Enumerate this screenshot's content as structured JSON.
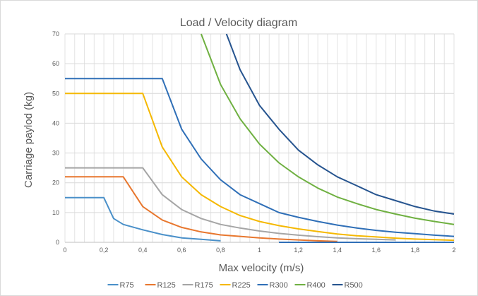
{
  "chart_data": {
    "type": "line",
    "title": "Load / Velocity diagram",
    "xlabel": "Max velocity (m/s)",
    "ylabel": "Carriage paylod (kg)",
    "xlim": [
      0,
      2
    ],
    "ylim": [
      0,
      70
    ],
    "x_ticks": [
      "0",
      "0,2",
      "0,4",
      "0,6",
      "0,8",
      "1",
      "1,2",
      "1,4",
      "1,6",
      "1,8",
      "2"
    ],
    "y_ticks": [
      "0",
      "10",
      "20",
      "30",
      "40",
      "50",
      "60",
      "70"
    ],
    "x_tick_values": [
      0,
      0.2,
      0.4,
      0.6,
      0.8,
      1.0,
      1.2,
      1.4,
      1.6,
      1.8,
      2.0
    ],
    "y_tick_values": [
      0,
      10,
      20,
      30,
      40,
      50,
      60,
      70
    ],
    "grid": true,
    "legend_position": "bottom",
    "series": [
      {
        "name": "R75",
        "color": "#4a90c9",
        "x": [
          0,
          0.2,
          0.25,
          0.3,
          0.4,
          0.5,
          0.6,
          0.7,
          0.8
        ],
        "y": [
          15,
          15,
          8,
          6,
          4.2,
          2.6,
          1.5,
          1.0,
          0.5
        ]
      },
      {
        "name": "R125",
        "color": "#e8772e",
        "x": [
          0,
          0.3,
          0.4,
          0.5,
          0.6,
          0.7,
          0.8,
          0.9,
          1.0,
          1.1,
          1.2,
          1.3,
          1.4
        ],
        "y": [
          22,
          22,
          12,
          7.5,
          5,
          3.5,
          2.5,
          2,
          1.5,
          1.1,
          0.8,
          0.5,
          0.3
        ]
      },
      {
        "name": "R175",
        "color": "#a5a5a5",
        "x": [
          0,
          0.4,
          0.5,
          0.6,
          0.7,
          0.8,
          0.9,
          1.0,
          1.1,
          1.2,
          1.3,
          1.4,
          1.5,
          1.6,
          1.7
        ],
        "y": [
          25,
          25,
          16,
          11,
          8,
          6,
          4.8,
          3.8,
          3,
          2.4,
          1.9,
          1.5,
          1.2,
          1.0,
          0.8
        ]
      },
      {
        "name": "R225",
        "color": "#f5b800",
        "x": [
          0,
          0.4,
          0.5,
          0.6,
          0.7,
          0.8,
          0.9,
          1.0,
          1.1,
          1.2,
          1.3,
          1.4,
          1.5,
          1.6,
          1.7,
          1.8,
          1.9,
          2.0
        ],
        "y": [
          50,
          50,
          32,
          22,
          16,
          12,
          9,
          7,
          5.6,
          4.5,
          3.6,
          2.8,
          2.2,
          1.8,
          1.4,
          1.1,
          0.9,
          0.7
        ]
      },
      {
        "name": "R300",
        "color": "#2f6fb7",
        "x": [
          0,
          0.5,
          0.6,
          0.7,
          0.8,
          0.9,
          1.0,
          1.1,
          1.2,
          1.3,
          1.4,
          1.5,
          1.6,
          1.7,
          1.8,
          1.9,
          2.0
        ],
        "y": [
          55,
          55,
          38,
          28,
          21,
          16,
          13,
          10,
          8.4,
          7,
          5.8,
          4.8,
          4,
          3.4,
          2.9,
          2.4,
          2
        ]
      },
      {
        "name": "R400",
        "color": "#6fb041",
        "x": [
          0.7,
          0.8,
          0.9,
          1.0,
          1.1,
          1.2,
          1.3,
          1.4,
          1.5,
          1.6,
          1.7,
          1.8,
          1.9,
          2.0
        ],
        "y": [
          70,
          53,
          41.5,
          33,
          26.7,
          22,
          18.2,
          15.2,
          13,
          11,
          9.5,
          8.1,
          7,
          6
        ]
      },
      {
        "name": "R500",
        "color": "#26548f",
        "x": [
          0.83,
          0.9,
          1.0,
          1.1,
          1.2,
          1.3,
          1.4,
          1.5,
          1.6,
          1.7,
          1.8,
          1.9,
          2.0
        ],
        "y": [
          70,
          58,
          46,
          38,
          31,
          26,
          22,
          19,
          16,
          14,
          12,
          10.5,
          9.5
        ]
      },
      {
        "name": "",
        "color": "#2f6fb7",
        "x": [
          1.1,
          2.0
        ],
        "y": [
          0,
          0
        ]
      }
    ]
  }
}
